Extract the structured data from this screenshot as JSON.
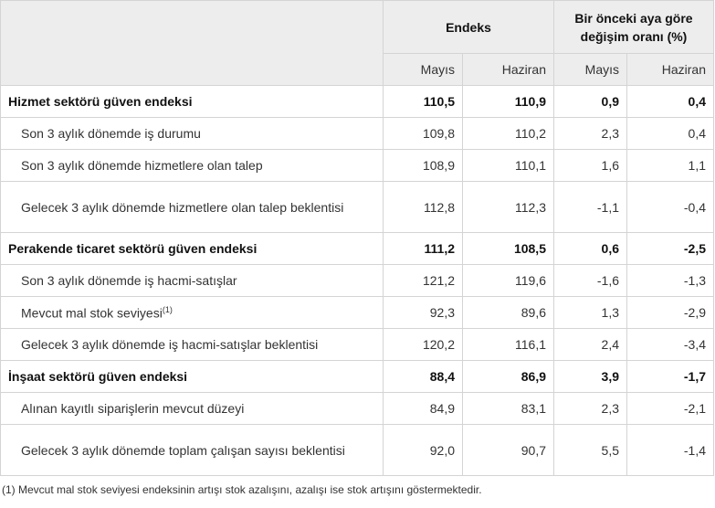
{
  "header": {
    "endeks": "Endeks",
    "change_line1": "Bir önceki aya göre",
    "change_line2": "değişim oranı (%)",
    "sub": [
      "Mayıs",
      "Haziran",
      "Mayıs",
      "Haziran"
    ]
  },
  "rows": [
    {
      "label": "Hizmet sektörü güven endeksi",
      "values": [
        "110,5",
        "110,9",
        "0,9",
        "0,4"
      ]
    },
    {
      "label": "Son 3 aylık dönemde iş durumu",
      "values": [
        "109,8",
        "110,2",
        "2,3",
        "0,4"
      ]
    },
    {
      "label": "Son 3 aylık dönemde hizmetlere olan talep",
      "values": [
        "108,9",
        "110,1",
        "1,6",
        "1,1"
      ]
    },
    {
      "label": "Gelecek 3 aylık dönemde hizmetlere olan talep beklentisi",
      "values": [
        "112,8",
        "112,3",
        "-1,1",
        "-0,4"
      ]
    },
    {
      "label": "Perakende ticaret sektörü güven endeksi",
      "values": [
        "111,2",
        "108,5",
        "0,6",
        "-2,5"
      ]
    },
    {
      "label": "Son 3 aylık dönemde iş hacmi-satışlar",
      "values": [
        "121,2",
        "119,6",
        "-1,6",
        "-1,3"
      ]
    },
    {
      "label": "Mevcut mal stok seviyesi",
      "sup": "(1)",
      "values": [
        "92,3",
        "89,6",
        "1,3",
        "-2,9"
      ]
    },
    {
      "label": "Gelecek 3 aylık dönemde iş hacmi-satışlar beklentisi",
      "values": [
        "120,2",
        "116,1",
        "2,4",
        "-3,4"
      ]
    },
    {
      "label": "İnşaat sektörü güven endeksi",
      "values": [
        "88,4",
        "86,9",
        "3,9",
        "-1,7"
      ]
    },
    {
      "label": "Alınan kayıtlı siparişlerin mevcut düzeyi",
      "values": [
        "84,9",
        "83,1",
        "2,3",
        "-2,1"
      ]
    },
    {
      "label": "Gelecek 3 aylık dönemde toplam çalışan sayısı beklentisi",
      "values": [
        "92,0",
        "90,7",
        "5,5",
        "-1,4"
      ]
    }
  ],
  "footnote": "(1) Mevcut mal stok seviyesi endeksinin artışı stok azalışını, azalışı ise stok artışını göstermektedir."
}
